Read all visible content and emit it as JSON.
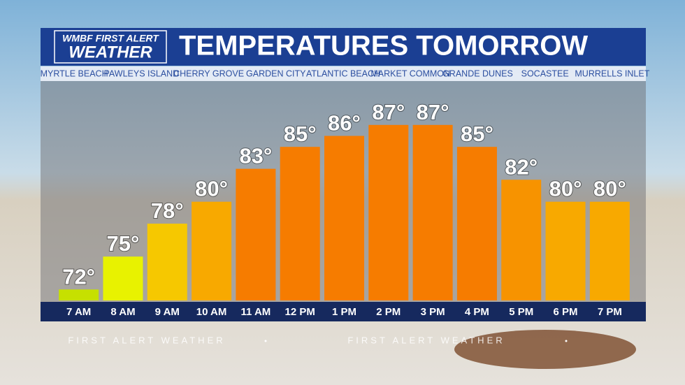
{
  "logo": {
    "line1": "WMBF FIRST ALERT",
    "line2": "WEATHER"
  },
  "locations": [
    "MYRTLE BEACH",
    "PAWLEYS ISLAND",
    "CHERRY GROVE",
    "GARDEN CITY",
    "ATLANTIC BEACH",
    "MARKET COMMON",
    "GRANDE DUNES",
    "SOCASTEE",
    "MURRELLS INLET"
  ],
  "ticker": "FIRST ALERT WEATHER",
  "chart_data": {
    "type": "bar",
    "title": "TEMPERATURES TOMORROW",
    "categories": [
      "7 AM",
      "8 AM",
      "9 AM",
      "10 AM",
      "11 AM",
      "12 PM",
      "1 PM",
      "2 PM",
      "3 PM",
      "4 PM",
      "5 PM",
      "6 PM",
      "7 PM"
    ],
    "values": [
      72,
      75,
      78,
      80,
      83,
      85,
      86,
      87,
      87,
      85,
      82,
      80,
      80
    ],
    "value_labels": [
      "72°",
      "75°",
      "78°",
      "80°",
      "83°",
      "85°",
      "86°",
      "87°",
      "87°",
      "85°",
      "82°",
      "80°",
      "80°"
    ],
    "colors": [
      "#c6e000",
      "#e8f200",
      "#f6c800",
      "#f8a900",
      "#f67c00",
      "#f67c00",
      "#f67c00",
      "#f67c00",
      "#f67c00",
      "#f67c00",
      "#f79300",
      "#f8a900",
      "#f8a900"
    ],
    "ylim": [
      71,
      91
    ]
  }
}
